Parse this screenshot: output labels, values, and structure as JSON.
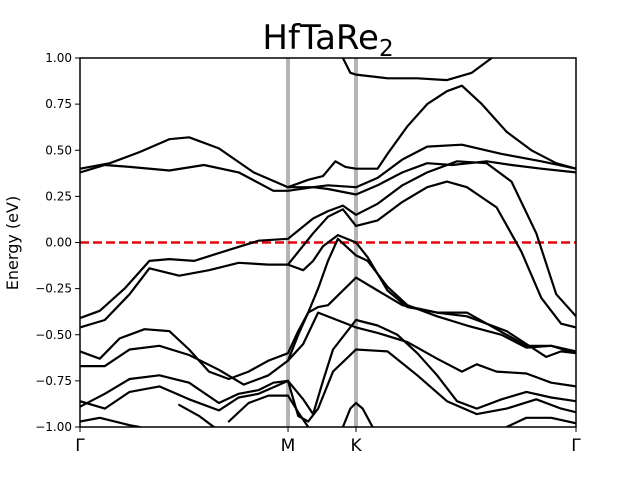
{
  "chart_data": {
    "type": "line",
    "title": "HfTaRe",
    "title_subscript": "2",
    "xlabel": "",
    "ylabel": "Energy (eV)",
    "ylim": [
      -1.0,
      1.0
    ],
    "xlim": [
      0,
      1.0
    ],
    "yticks": [
      {
        "value": 1.0,
        "label": "1.00"
      },
      {
        "value": 0.75,
        "label": "0.75"
      },
      {
        "value": 0.5,
        "label": "0.50"
      },
      {
        "value": 0.25,
        "label": "0.25"
      },
      {
        "value": 0.0,
        "label": "0.00"
      },
      {
        "value": -0.25,
        "label": "−0.25"
      },
      {
        "value": -0.5,
        "label": "−0.50"
      },
      {
        "value": -0.75,
        "label": "−0.75"
      },
      {
        "value": -1.0,
        "label": "−1.00"
      }
    ],
    "high_symmetry_points": [
      {
        "label": "Γ",
        "x": 0.0
      },
      {
        "label": "M",
        "x": 0.4194
      },
      {
        "label": "K",
        "x": 0.5565
      },
      {
        "label": "Γ",
        "x": 1.0
      }
    ],
    "fermi_level": {
      "value": 0.0,
      "color": "#e8000b",
      "style": "dashed"
    },
    "divider_color": "#b4b4b4",
    "band_color": "#000000",
    "grid": false,
    "series": [
      {
        "points": [
          [
            0,
            0.4
          ],
          [
            0.06,
            0.43
          ],
          [
            0.12,
            0.49
          ],
          [
            0.18,
            0.56
          ],
          [
            0.22,
            0.57
          ],
          [
            0.28,
            0.51
          ],
          [
            0.35,
            0.38
          ],
          [
            0.4194,
            0.3
          ],
          [
            0.47,
            0.3
          ],
          [
            0.5,
            0.31
          ],
          [
            0.5565,
            0.3
          ],
          [
            0.6,
            0.35
          ],
          [
            0.65,
            0.45
          ],
          [
            0.7,
            0.52
          ],
          [
            0.77,
            0.53
          ],
          [
            0.85,
            0.48
          ],
          [
            0.93,
            0.44
          ],
          [
            1.0,
            0.4
          ]
        ]
      },
      {
        "points": [
          [
            0,
            0.38
          ],
          [
            0.05,
            0.42
          ],
          [
            0.1,
            0.41
          ],
          [
            0.18,
            0.39
          ],
          [
            0.25,
            0.42
          ],
          [
            0.32,
            0.38
          ],
          [
            0.39,
            0.28
          ],
          [
            0.4194,
            0.28
          ],
          [
            0.47,
            0.3
          ],
          [
            0.5,
            0.29
          ],
          [
            0.5565,
            0.26
          ],
          [
            0.6,
            0.31
          ],
          [
            0.65,
            0.38
          ],
          [
            0.7,
            0.43
          ],
          [
            0.75,
            0.42
          ],
          [
            0.82,
            0.44
          ],
          [
            0.87,
            0.42
          ],
          [
            0.93,
            0.4
          ],
          [
            1.0,
            0.38
          ]
        ]
      },
      {
        "points": [
          [
            0.4194,
            0.3
          ],
          [
            0.46,
            0.34
          ],
          [
            0.49,
            0.36
          ],
          [
            0.515,
            0.44
          ],
          [
            0.535,
            0.41
          ],
          [
            0.5565,
            0.4
          ],
          [
            0.6,
            0.4
          ],
          [
            0.62,
            0.48
          ],
          [
            0.66,
            0.63
          ],
          [
            0.7,
            0.75
          ],
          [
            0.74,
            0.82
          ],
          [
            0.77,
            0.85
          ],
          [
            0.81,
            0.75
          ],
          [
            0.86,
            0.6
          ],
          [
            0.91,
            0.5
          ],
          [
            0.96,
            0.43
          ],
          [
            1.0,
            0.4
          ]
        ]
      },
      {
        "points": [
          [
            0.53,
            1.0
          ],
          [
            0.545,
            0.92
          ],
          [
            0.5565,
            0.91
          ],
          [
            0.62,
            0.89
          ],
          [
            0.68,
            0.89
          ],
          [
            0.74,
            0.88
          ],
          [
            0.79,
            0.92
          ],
          [
            0.83,
            1.0
          ]
        ]
      },
      {
        "points": [
          [
            0,
            -0.41
          ],
          [
            0.04,
            -0.37
          ],
          [
            0.09,
            -0.25
          ],
          [
            0.14,
            -0.1
          ],
          [
            0.18,
            -0.09
          ],
          [
            0.23,
            -0.1
          ],
          [
            0.3,
            -0.04
          ],
          [
            0.36,
            0.01
          ],
          [
            0.4194,
            0.02
          ],
          [
            0.47,
            0.13
          ],
          [
            0.5,
            0.17
          ],
          [
            0.53,
            0.2
          ],
          [
            0.5565,
            0.15
          ],
          [
            0.6,
            0.21
          ],
          [
            0.65,
            0.31
          ],
          [
            0.7,
            0.38
          ],
          [
            0.76,
            0.44
          ],
          [
            0.82,
            0.43
          ],
          [
            0.87,
            0.33
          ],
          [
            0.92,
            0.05
          ],
          [
            0.96,
            -0.28
          ],
          [
            1.0,
            -0.4
          ]
        ]
      },
      {
        "points": [
          [
            0,
            -0.46
          ],
          [
            0.05,
            -0.42
          ],
          [
            0.1,
            -0.28
          ],
          [
            0.14,
            -0.14
          ],
          [
            0.2,
            -0.18
          ],
          [
            0.26,
            -0.15
          ],
          [
            0.32,
            -0.11
          ],
          [
            0.38,
            -0.12
          ],
          [
            0.4194,
            -0.12
          ],
          [
            0.47,
            0.05
          ],
          [
            0.5,
            0.14
          ],
          [
            0.53,
            0.18
          ],
          [
            0.5565,
            0.09
          ],
          [
            0.6,
            0.12
          ],
          [
            0.65,
            0.22
          ],
          [
            0.7,
            0.3
          ],
          [
            0.74,
            0.33
          ],
          [
            0.78,
            0.3
          ],
          [
            0.84,
            0.19
          ],
          [
            0.89,
            -0.05
          ],
          [
            0.93,
            -0.3
          ],
          [
            0.97,
            -0.44
          ],
          [
            1.0,
            -0.46
          ]
        ]
      },
      {
        "points": [
          [
            0.4194,
            -0.12
          ],
          [
            0.45,
            -0.15
          ],
          [
            0.47,
            -0.1
          ],
          [
            0.49,
            -0.02
          ],
          [
            0.52,
            0.04
          ],
          [
            0.5565,
            0.0
          ],
          [
            0.58,
            -0.08
          ],
          [
            0.62,
            -0.26
          ],
          [
            0.66,
            -0.35
          ],
          [
            0.72,
            -0.38
          ],
          [
            0.78,
            -0.4
          ],
          [
            0.86,
            -0.48
          ],
          [
            0.9,
            -0.55
          ],
          [
            0.94,
            -0.62
          ],
          [
            0.97,
            -0.59
          ],
          [
            1.0,
            -0.6
          ]
        ]
      },
      {
        "points": [
          [
            0.4194,
            -0.64
          ],
          [
            0.44,
            -0.5
          ],
          [
            0.46,
            -0.38
          ],
          [
            0.48,
            -0.25
          ],
          [
            0.5,
            -0.1
          ],
          [
            0.52,
            0.02
          ],
          [
            0.5565,
            -0.07
          ],
          [
            0.58,
            -0.1
          ],
          [
            0.62,
            -0.24
          ],
          [
            0.66,
            -0.34
          ],
          [
            0.72,
            -0.4
          ],
          [
            0.78,
            -0.45
          ],
          [
            0.85,
            -0.5
          ],
          [
            0.9,
            -0.57
          ],
          [
            0.95,
            -0.56
          ],
          [
            1.0,
            -0.59
          ]
        ]
      },
      {
        "points": [
          [
            0,
            -0.59
          ],
          [
            0.04,
            -0.63
          ],
          [
            0.08,
            -0.52
          ],
          [
            0.13,
            -0.47
          ],
          [
            0.18,
            -0.48
          ],
          [
            0.22,
            -0.58
          ],
          [
            0.26,
            -0.7
          ],
          [
            0.3,
            -0.74
          ],
          [
            0.34,
            -0.7
          ],
          [
            0.38,
            -0.64
          ],
          [
            0.4194,
            -0.6
          ],
          [
            0.44,
            -0.48
          ],
          [
            0.46,
            -0.38
          ],
          [
            0.48,
            -0.35
          ],
          [
            0.5,
            -0.34
          ],
          [
            0.5565,
            -0.19
          ],
          [
            0.6,
            -0.26
          ],
          [
            0.65,
            -0.34
          ],
          [
            0.72,
            -0.38
          ],
          [
            0.78,
            -0.38
          ],
          [
            0.84,
            -0.47
          ],
          [
            0.9,
            -0.56
          ],
          [
            0.95,
            -0.56
          ],
          [
            1.0,
            -0.6
          ]
        ]
      },
      {
        "points": [
          [
            0,
            -0.67
          ],
          [
            0.05,
            -0.67
          ],
          [
            0.1,
            -0.58
          ],
          [
            0.16,
            -0.56
          ],
          [
            0.22,
            -0.61
          ],
          [
            0.28,
            -0.69
          ],
          [
            0.33,
            -0.77
          ],
          [
            0.38,
            -0.72
          ],
          [
            0.4194,
            -0.64
          ],
          [
            0.45,
            -0.55
          ],
          [
            0.48,
            -0.38
          ],
          [
            0.5565,
            -0.46
          ],
          [
            0.6,
            -0.49
          ],
          [
            0.66,
            -0.54
          ],
          [
            0.72,
            -0.63
          ],
          [
            0.77,
            -0.7
          ],
          [
            0.8,
            -0.66
          ],
          [
            0.84,
            -0.7
          ],
          [
            0.9,
            -0.71
          ],
          [
            0.95,
            -0.76
          ],
          [
            1.0,
            -0.78
          ]
        ]
      },
      {
        "points": [
          [
            0,
            -0.89
          ],
          [
            0.05,
            -0.82
          ],
          [
            0.1,
            -0.74
          ],
          [
            0.16,
            -0.72
          ],
          [
            0.22,
            -0.76
          ],
          [
            0.28,
            -0.87
          ],
          [
            0.32,
            -0.82
          ],
          [
            0.36,
            -0.8
          ],
          [
            0.39,
            -0.76
          ],
          [
            0.4194,
            -0.75
          ],
          [
            0.45,
            -0.85
          ],
          [
            0.47,
            -0.93
          ],
          [
            0.49,
            -0.75
          ],
          [
            0.51,
            -0.58
          ],
          [
            0.5565,
            -0.42
          ],
          [
            0.6,
            -0.45
          ],
          [
            0.64,
            -0.5
          ],
          [
            0.68,
            -0.6
          ],
          [
            0.72,
            -0.72
          ],
          [
            0.76,
            -0.86
          ],
          [
            0.8,
            -0.9
          ],
          [
            0.85,
            -0.85
          ],
          [
            0.9,
            -0.81
          ],
          [
            0.95,
            -0.84
          ],
          [
            1.0,
            -0.86
          ]
        ]
      },
      {
        "points": [
          [
            0,
            -0.86
          ],
          [
            0.05,
            -0.9
          ],
          [
            0.1,
            -0.81
          ],
          [
            0.16,
            -0.78
          ],
          [
            0.22,
            -0.85
          ],
          [
            0.28,
            -0.91
          ],
          [
            0.32,
            -0.84
          ],
          [
            0.36,
            -0.82
          ],
          [
            0.4194,
            -0.75
          ],
          [
            0.44,
            -0.94
          ],
          [
            0.46,
            -0.97
          ],
          [
            0.48,
            -0.9
          ],
          [
            0.51,
            -0.7
          ],
          [
            0.5565,
            -0.58
          ],
          [
            0.62,
            -0.59
          ],
          [
            0.68,
            -0.72
          ],
          [
            0.74,
            -0.86
          ],
          [
            0.8,
            -0.93
          ],
          [
            0.86,
            -0.9
          ],
          [
            0.92,
            -0.85
          ],
          [
            0.97,
            -0.9
          ],
          [
            1.0,
            -0.92
          ]
        ]
      },
      {
        "points": [
          [
            0,
            -0.97
          ],
          [
            0.04,
            -0.95
          ],
          [
            0.1,
            -0.99
          ],
          [
            0.12,
            -1.0
          ]
        ]
      },
      {
        "points": [
          [
            0.2,
            -0.88
          ],
          [
            0.24,
            -0.94
          ],
          [
            0.27,
            -1.0
          ]
        ]
      },
      {
        "points": [
          [
            0.3,
            -0.97
          ],
          [
            0.34,
            -0.87
          ],
          [
            0.38,
            -0.83
          ],
          [
            0.4194,
            -0.83
          ],
          [
            0.44,
            -0.92
          ],
          [
            0.46,
            -1.0
          ]
        ]
      },
      {
        "points": [
          [
            0.53,
            -1.0
          ],
          [
            0.545,
            -0.9
          ],
          [
            0.5565,
            -0.87
          ],
          [
            0.57,
            -0.9
          ],
          [
            0.59,
            -1.0
          ]
        ]
      },
      {
        "points": [
          [
            0.86,
            -1.0
          ],
          [
            0.9,
            -0.95
          ],
          [
            0.95,
            -0.95
          ],
          [
            1.0,
            -0.98
          ]
        ]
      }
    ]
  }
}
